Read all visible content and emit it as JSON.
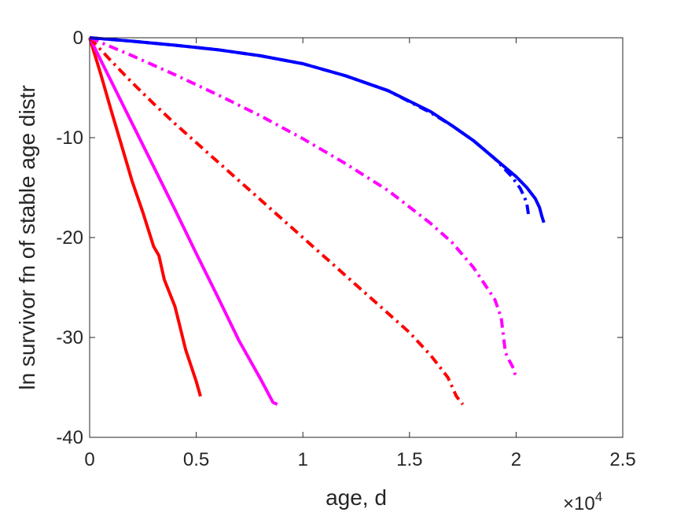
{
  "chart_data": {
    "type": "line",
    "title": "",
    "xlabel": "age, d",
    "ylabel": "ln survivor fn of stable age distr",
    "x_multiplier_label": "×10",
    "x_multiplier_exponent": "4",
    "xlim": [
      0,
      25000
    ],
    "ylim": [
      -40,
      0
    ],
    "grid": false,
    "legend": "none",
    "x_ticks": [
      0,
      5000,
      10000,
      15000,
      20000,
      25000
    ],
    "x_tick_labels": [
      "0",
      "0.5",
      "1",
      "1.5",
      "2",
      "2.5"
    ],
    "y_ticks": [
      0,
      -10,
      -20,
      -30,
      -40
    ],
    "y_tick_labels": [
      "0",
      "-10",
      "-20",
      "-30",
      "-40"
    ],
    "series": [
      {
        "color": "#ff0000",
        "dash": "solid",
        "x": [
          0,
          500,
          1000,
          1500,
          2000,
          2500,
          3000,
          3250,
          3500,
          4000,
          4200,
          4500,
          5000,
          5200
        ],
        "y": [
          0,
          -3.5,
          -7.2,
          -10.8,
          -14.4,
          -17.5,
          -20.9,
          -21.8,
          -24.2,
          -26.9,
          -28.6,
          -31.2,
          -34.4,
          -35.9
        ]
      },
      {
        "color": "#ff00ff",
        "dash": "solid",
        "x": [
          0,
          1000,
          2000,
          3000,
          4000,
          5000,
          6000,
          7000,
          8000,
          8400,
          8600,
          8800
        ],
        "y": [
          0,
          -4.3,
          -8.6,
          -12.9,
          -17.2,
          -21.6,
          -25.9,
          -30.3,
          -34.1,
          -35.7,
          -36.5,
          -36.7
        ]
      },
      {
        "color": "#ff0000",
        "dash": "dashdot",
        "x": [
          0,
          1000,
          2000,
          3000,
          4000,
          5000,
          6000,
          7000,
          8000,
          9000,
          10000,
          11000,
          12000,
          13000,
          14000,
          15000,
          16000,
          16800,
          17200,
          17500
        ],
        "y": [
          0,
          -2.3,
          -4.5,
          -6.6,
          -8.6,
          -10.5,
          -12.4,
          -14.3,
          -16.2,
          -18.1,
          -20.0,
          -21.9,
          -23.8,
          -25.7,
          -27.6,
          -29.5,
          -31.8,
          -34.0,
          -35.9,
          -36.7
        ]
      },
      {
        "color": "#ff00ff",
        "dash": "dashdot",
        "x": [
          0,
          2000,
          4000,
          6000,
          8000,
          10000,
          12000,
          14000,
          16000,
          17000,
          18000,
          19000,
          19300,
          19500,
          19700,
          19900,
          20000
        ],
        "y": [
          0,
          -1.8,
          -3.7,
          -5.7,
          -7.8,
          -10.1,
          -12.6,
          -15.3,
          -18.6,
          -20.5,
          -23.0,
          -26.2,
          -28.0,
          -31.5,
          -32.4,
          -33.2,
          -34.2
        ]
      },
      {
        "color": "#0000ff",
        "dash": "dashdot",
        "x": [
          0,
          2000,
          4000,
          6000,
          8000,
          10000,
          12000,
          14000,
          16000,
          17000,
          18000,
          19000,
          19800,
          20200,
          20400,
          20500,
          20600
        ],
        "y": [
          0,
          -0.35,
          -0.75,
          -1.2,
          -1.8,
          -2.6,
          -3.8,
          -5.3,
          -7.5,
          -8.8,
          -10.3,
          -12.1,
          -13.9,
          -15.1,
          -16.0,
          -16.6,
          -18.0
        ]
      },
      {
        "color": "#0000ff",
        "dash": "solid",
        "x": [
          0,
          2000,
          4000,
          6000,
          8000,
          10000,
          12000,
          14000,
          16000,
          17000,
          18000,
          19000,
          20000,
          20500,
          20900,
          21100,
          21200,
          21300
        ],
        "y": [
          0,
          -0.35,
          -0.75,
          -1.2,
          -1.8,
          -2.6,
          -3.8,
          -5.3,
          -7.4,
          -8.8,
          -10.3,
          -12.1,
          -13.9,
          -15.0,
          -16.1,
          -17.0,
          -17.8,
          -18.5
        ]
      }
    ]
  }
}
